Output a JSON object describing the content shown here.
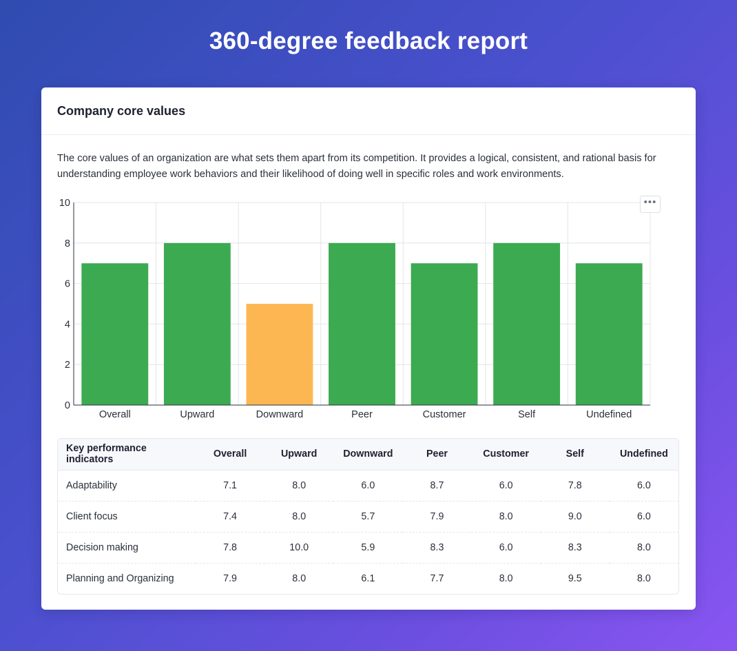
{
  "page": {
    "title": "360-degree feedback report"
  },
  "card": {
    "title": "Company core values",
    "description": "The core values of an organization are what sets them apart from its competition. It provides a logical, consistent, and rational basis for understanding employee work behaviors and their likelihood of doing well in specific roles and work environments.",
    "menu_label": "•••"
  },
  "colors": {
    "good": "#3caa50",
    "warning": "#fdb752",
    "grid": "#e2e4e8",
    "axis": "#2a2f3a"
  },
  "chart_data": {
    "type": "bar",
    "categories": [
      "Overall",
      "Upward",
      "Downward",
      "Peer",
      "Customer",
      "Self",
      "Undefined"
    ],
    "values": [
      7,
      8,
      5,
      8,
      7,
      8,
      7
    ],
    "bar_colors": [
      "#3caa50",
      "#3caa50",
      "#fdb752",
      "#3caa50",
      "#3caa50",
      "#3caa50",
      "#3caa50"
    ],
    "ylim": [
      0,
      10
    ],
    "yticks": [
      0,
      2,
      4,
      6,
      8,
      10
    ],
    "grid": true,
    "legend": "none"
  },
  "table": {
    "headers": [
      "Key performance indicators",
      "Overall",
      "Upward",
      "Downward",
      "Peer",
      "Customer",
      "Self",
      "Undefined"
    ],
    "rows": [
      [
        "Adaptability",
        "7.1",
        "8.0",
        "6.0",
        "8.7",
        "6.0",
        "7.8",
        "6.0"
      ],
      [
        "Client focus",
        "7.4",
        "8.0",
        "5.7",
        "7.9",
        "8.0",
        "9.0",
        "6.0"
      ],
      [
        "Decision making",
        "7.8",
        "10.0",
        "5.9",
        "8.3",
        "6.0",
        "8.3",
        "8.0"
      ],
      [
        "Planning and Organizing",
        "7.9",
        "8.0",
        "6.1",
        "7.7",
        "8.0",
        "9.5",
        "8.0"
      ]
    ]
  }
}
